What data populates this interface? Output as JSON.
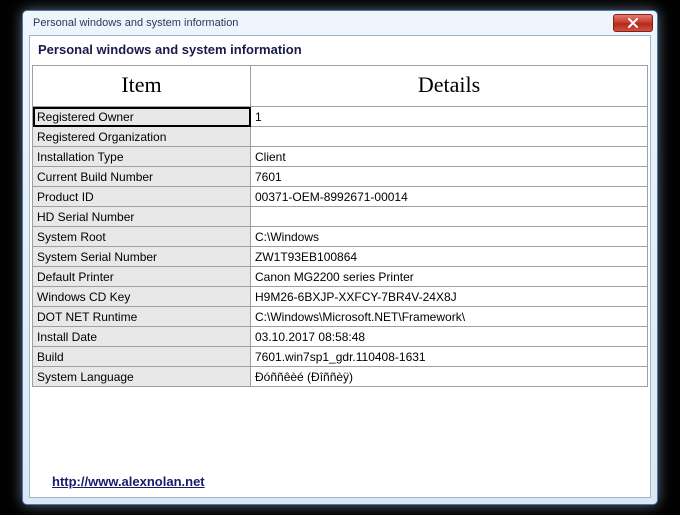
{
  "window": {
    "title": "Personal windows and system information",
    "heading": "Personal windows and system information"
  },
  "table": {
    "columns": {
      "item": "Item",
      "details": "Details"
    },
    "rows": [
      {
        "item": "Registered Owner",
        "details": "1",
        "selected": true
      },
      {
        "item": "Registered Organization",
        "details": ""
      },
      {
        "item": "Installation Type",
        "details": "Client"
      },
      {
        "item": "Current Build Number",
        "details": "7601"
      },
      {
        "item": "Product ID",
        "details": "00371-OEM-8992671-00014"
      },
      {
        "item": "HD Serial Number",
        "details": ""
      },
      {
        "item": "System Root",
        "details": "C:\\Windows"
      },
      {
        "item": "System Serial Number",
        "details": "ZW1T93EB100864"
      },
      {
        "item": "Default Printer",
        "details": "Canon MG2200 series Printer"
      },
      {
        "item": "Windows CD Key",
        "details": "H9M26-6BXJP-XXFCY-7BR4V-24X8J"
      },
      {
        "item": "DOT NET Runtime",
        "details": "C:\\Windows\\Microsoft.NET\\Framework\\"
      },
      {
        "item": "Install Date",
        "details": "03.10.2017 08:58:48"
      },
      {
        "item": "Build",
        "details": "7601.win7sp1_gdr.110408-1631"
      },
      {
        "item": "System Language",
        "details": "Đóññêèé (Đîññèÿ)"
      }
    ]
  },
  "footer": {
    "link_text": "http://www.alexnolan.net"
  },
  "colors": {
    "window_border": "#4a79b0",
    "window_bg_top": "#eef5fb",
    "window_bg_bottom": "#dbe8f4",
    "client_bg": "#ffffff",
    "cell_item_bg": "#e8e8e8",
    "cell_border": "#a0a0a0",
    "close_top": "#e67a6f",
    "close_bottom": "#b22a1c"
  }
}
